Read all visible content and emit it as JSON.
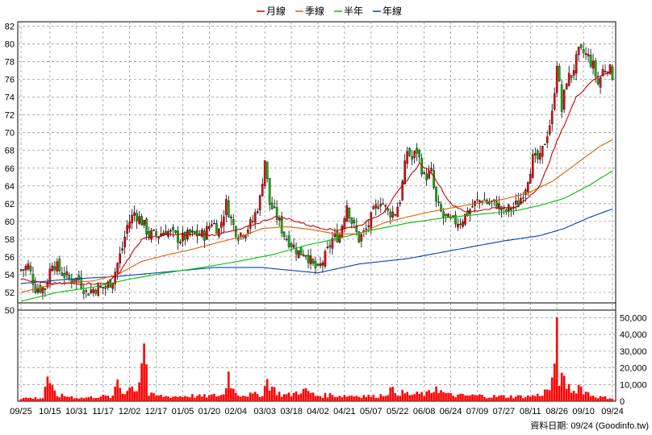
{
  "legend": [
    {
      "label": "月線",
      "color": "#cc0000"
    },
    {
      "label": "季線",
      "color": "#e06000"
    },
    {
      "label": "半年",
      "color": "#00c000"
    },
    {
      "label": "年線",
      "color": "#0040c0"
    }
  ],
  "credit": "資料日期: 09/24 (Goodinfo.tw)",
  "chart_data": {
    "type": "candlestick",
    "price_axis": {
      "min": 50,
      "max": 82.5,
      "ticks": [
        50,
        52,
        54,
        56,
        58,
        60,
        62,
        64,
        66,
        68,
        70,
        72,
        74,
        76,
        78,
        80,
        82
      ]
    },
    "volume_axis": {
      "min": 0,
      "max": 57000,
      "ticks": [
        0,
        10000,
        20000,
        30000,
        40000,
        50000
      ],
      "tick_labels": [
        "0",
        "10,000",
        "20,000",
        "30,000",
        "40,000",
        "50,000"
      ]
    },
    "x_tick_labels": [
      "09/25",
      "10/15",
      "10/31",
      "11/17",
      "12/02",
      "12/17",
      "01/05",
      "01/20",
      "02/04",
      "03/03",
      "03/18",
      "04/02",
      "04/21",
      "05/07",
      "05/22",
      "06/08",
      "06/24",
      "07/09",
      "07/27",
      "08/11",
      "08/26",
      "09/10",
      "09/24"
    ],
    "x_tick_index": [
      0,
      12,
      23,
      34,
      45,
      56,
      67,
      78,
      89,
      101,
      112,
      123,
      134,
      145,
      156,
      167,
      178,
      189,
      200,
      211,
      222,
      233,
      245
    ],
    "close_anchors": [
      [
        0,
        54.5
      ],
      [
        3,
        55
      ],
      [
        6,
        52.5
      ],
      [
        10,
        52.5
      ],
      [
        13,
        55.5
      ],
      [
        16,
        54.5
      ],
      [
        20,
        53.5
      ],
      [
        24,
        53.5
      ],
      [
        27,
        52
      ],
      [
        31,
        52.5
      ],
      [
        35,
        52.5
      ],
      [
        38,
        53.5
      ],
      [
        42,
        57
      ],
      [
        44,
        59.5
      ],
      [
        47,
        61
      ],
      [
        50,
        60
      ],
      [
        53,
        58.5
      ],
      [
        57,
        58.5
      ],
      [
        60,
        59
      ],
      [
        63,
        58.5
      ],
      [
        66,
        58
      ],
      [
        70,
        58.5
      ],
      [
        73,
        58.5
      ],
      [
        76,
        58.5
      ],
      [
        79,
        60
      ],
      [
        82,
        59
      ],
      [
        85,
        62
      ],
      [
        88,
        59.5
      ],
      [
        90,
        58.5
      ],
      [
        93,
        59
      ],
      [
        96,
        60
      ],
      [
        99,
        62.5
      ],
      [
        101,
        67
      ],
      [
        103,
        62
      ],
      [
        106,
        60.5
      ],
      [
        109,
        58.5
      ],
      [
        112,
        57.5
      ],
      [
        115,
        56.5
      ],
      [
        118,
        56.5
      ],
      [
        121,
        55
      ],
      [
        123,
        54.5
      ],
      [
        126,
        56
      ],
      [
        129,
        58
      ],
      [
        132,
        58.5
      ],
      [
        135,
        62
      ],
      [
        137,
        60
      ],
      [
        140,
        58
      ],
      [
        143,
        59
      ],
      [
        146,
        61
      ],
      [
        149,
        62.5
      ],
      [
        152,
        61
      ],
      [
        155,
        61
      ],
      [
        157,
        62.5
      ],
      [
        160,
        68
      ],
      [
        162,
        67
      ],
      [
        164,
        68
      ],
      [
        167,
        65
      ],
      [
        170,
        65.5
      ],
      [
        172,
        62
      ],
      [
        175,
        60.5
      ],
      [
        178,
        60
      ],
      [
        182,
        60
      ],
      [
        185,
        61
      ],
      [
        188,
        62
      ],
      [
        191,
        62.5
      ],
      [
        194,
        62
      ],
      [
        197,
        62
      ],
      [
        200,
        61
      ],
      [
        203,
        61.5
      ],
      [
        206,
        62
      ],
      [
        209,
        64
      ],
      [
        212,
        67
      ],
      [
        215,
        67
      ],
      [
        217,
        69
      ],
      [
        220,
        72
      ],
      [
        222,
        78
      ],
      [
        224,
        72.5
      ],
      [
        226,
        76
      ],
      [
        228,
        76.5
      ],
      [
        231,
        79
      ],
      [
        233,
        79
      ],
      [
        235,
        78.5
      ],
      [
        237,
        77.5
      ],
      [
        239,
        75.5
      ],
      [
        241,
        77
      ],
      [
        243,
        77.5
      ],
      [
        245,
        76.5
      ]
    ],
    "volume_anchors": [
      [
        0,
        2000
      ],
      [
        9,
        2000
      ],
      [
        11,
        17000
      ],
      [
        12,
        9000
      ],
      [
        15,
        3500
      ],
      [
        20,
        3000
      ],
      [
        25,
        2000
      ],
      [
        29,
        2500
      ],
      [
        32,
        3000
      ],
      [
        35,
        3000
      ],
      [
        38,
        2500
      ],
      [
        40,
        14000
      ],
      [
        42,
        5000
      ],
      [
        44,
        8000
      ],
      [
        47,
        9000
      ],
      [
        48,
        7000
      ],
      [
        49,
        15000
      ],
      [
        51,
        40000
      ],
      [
        53,
        4000
      ],
      [
        56,
        3500
      ],
      [
        60,
        3000
      ],
      [
        65,
        3000
      ],
      [
        70,
        3500
      ],
      [
        75,
        3000
      ],
      [
        80,
        3500
      ],
      [
        84,
        4000
      ],
      [
        86,
        18000
      ],
      [
        88,
        7000
      ],
      [
        91,
        4000
      ],
      [
        95,
        4000
      ],
      [
        100,
        4500
      ],
      [
        102,
        13000
      ],
      [
        105,
        7000
      ],
      [
        108,
        4000
      ],
      [
        112,
        4000
      ],
      [
        116,
        7000
      ],
      [
        119,
        6000
      ],
      [
        122,
        3500
      ],
      [
        125,
        3500
      ],
      [
        128,
        4000
      ],
      [
        131,
        3500
      ],
      [
        134,
        3500
      ],
      [
        138,
        3500
      ],
      [
        142,
        3500
      ],
      [
        146,
        3000
      ],
      [
        150,
        4000
      ],
      [
        153,
        7000
      ],
      [
        156,
        5500
      ],
      [
        159,
        5000
      ],
      [
        162,
        4000
      ],
      [
        165,
        4500
      ],
      [
        168,
        4500
      ],
      [
        170,
        5500
      ],
      [
        172,
        10000
      ],
      [
        174,
        6000
      ],
      [
        177,
        4000
      ],
      [
        181,
        3500
      ],
      [
        185,
        3500
      ],
      [
        190,
        3500
      ],
      [
        195,
        3000
      ],
      [
        200,
        3000
      ],
      [
        205,
        3000
      ],
      [
        210,
        3000
      ],
      [
        215,
        4000
      ],
      [
        219,
        8000
      ],
      [
        221,
        17000
      ],
      [
        222,
        54000
      ],
      [
        223,
        15000
      ],
      [
        226,
        10000
      ],
      [
        229,
        6000
      ],
      [
        231,
        10000
      ],
      [
        233,
        7000
      ],
      [
        236,
        4000
      ],
      [
        240,
        2500
      ],
      [
        245,
        2000
      ]
    ],
    "ma20_anchors": [
      [
        0,
        53.5
      ],
      [
        10,
        53
      ],
      [
        25,
        53
      ],
      [
        35,
        53
      ],
      [
        40,
        54
      ],
      [
        50,
        58
      ],
      [
        60,
        58.5
      ],
      [
        80,
        58.5
      ],
      [
        90,
        59
      ],
      [
        100,
        60
      ],
      [
        105,
        60.5
      ],
      [
        112,
        60.2
      ],
      [
        120,
        59.5
      ],
      [
        130,
        59
      ],
      [
        140,
        59.5
      ],
      [
        150,
        61
      ],
      [
        158,
        64
      ],
      [
        165,
        66.5
      ],
      [
        170,
        65.5
      ],
      [
        178,
        62
      ],
      [
        185,
        61
      ],
      [
        195,
        61.5
      ],
      [
        205,
        61.5
      ],
      [
        215,
        64
      ],
      [
        222,
        69
      ],
      [
        230,
        74
      ],
      [
        237,
        76
      ],
      [
        245,
        77
      ]
    ],
    "ma60_anchors": [
      [
        0,
        52
      ],
      [
        15,
        53
      ],
      [
        30,
        53.3
      ],
      [
        40,
        54
      ],
      [
        50,
        55.5
      ],
      [
        60,
        56.2
      ],
      [
        70,
        56.8
      ],
      [
        80,
        57.5
      ],
      [
        90,
        58.2
      ],
      [
        100,
        59.2
      ],
      [
        110,
        59.4
      ],
      [
        120,
        59.1
      ],
      [
        130,
        58.6
      ],
      [
        140,
        58.6
      ],
      [
        150,
        59.8
      ],
      [
        160,
        60.5
      ],
      [
        170,
        61.1
      ],
      [
        180,
        61.6
      ],
      [
        190,
        62.1
      ],
      [
        200,
        62.5
      ],
      [
        210,
        63.2
      ],
      [
        220,
        64.5
      ],
      [
        230,
        66.5
      ],
      [
        240,
        68.5
      ],
      [
        245,
        69.2
      ]
    ],
    "ma120_anchors": [
      [
        0,
        51
      ],
      [
        15,
        52
      ],
      [
        30,
        52.6
      ],
      [
        45,
        53.5
      ],
      [
        60,
        54.2
      ],
      [
        75,
        54.8
      ],
      [
        90,
        55.5
      ],
      [
        105,
        56.3
      ],
      [
        118,
        57.3
      ],
      [
        130,
        58
      ],
      [
        145,
        59
      ],
      [
        160,
        59.8
      ],
      [
        175,
        60.4
      ],
      [
        190,
        60.8
      ],
      [
        205,
        61.2
      ],
      [
        215,
        61.8
      ],
      [
        225,
        62.6
      ],
      [
        235,
        64
      ],
      [
        245,
        65.7
      ]
    ],
    "ma240_anchors": [
      [
        0,
        53
      ],
      [
        20,
        53.5
      ],
      [
        40,
        53.8
      ],
      [
        60,
        54.3
      ],
      [
        80,
        54.8
      ],
      [
        100,
        54.8
      ],
      [
        115,
        54.4
      ],
      [
        123,
        54.2
      ],
      [
        140,
        55.2
      ],
      [
        160,
        55.8
      ],
      [
        180,
        56.8
      ],
      [
        200,
        57.8
      ],
      [
        215,
        58.4
      ],
      [
        225,
        59.2
      ],
      [
        235,
        60.4
      ],
      [
        245,
        61.4
      ]
    ]
  }
}
